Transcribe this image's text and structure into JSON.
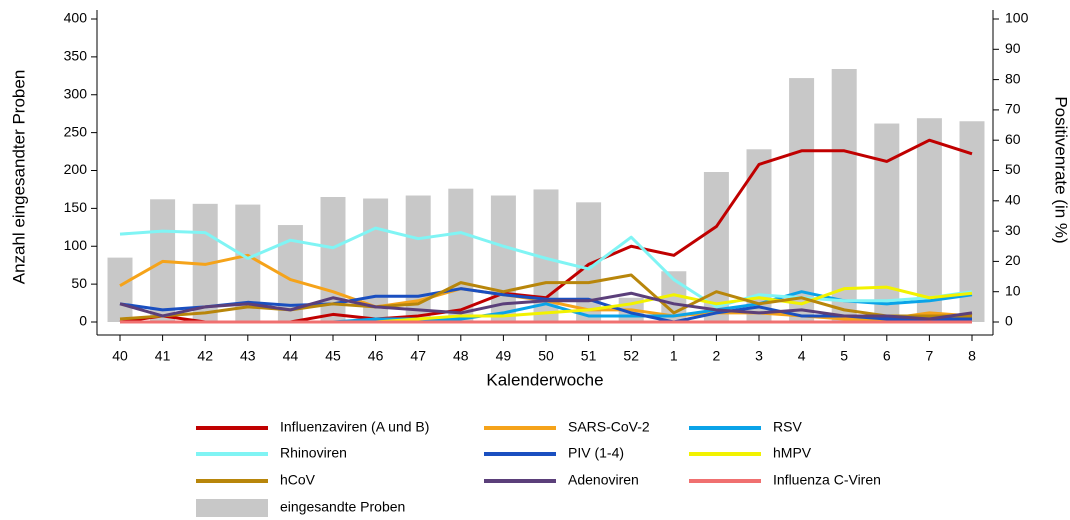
{
  "chart_data": {
    "type": "combo",
    "ylabel": "Anzahl eingesandter Proben",
    "y2label": "Positivenrate (in %)",
    "xlabel": "Kalenderwoche",
    "categories": [
      "40",
      "41",
      "42",
      "43",
      "44",
      "45",
      "46",
      "47",
      "48",
      "49",
      "50",
      "51",
      "52",
      "1",
      "2",
      "3",
      "4",
      "5",
      "6",
      "7",
      "8"
    ],
    "ylim": [
      0,
      400
    ],
    "yticks": [
      0,
      50,
      100,
      150,
      200,
      250,
      300,
      350,
      400
    ],
    "y2lim": [
      0,
      100
    ],
    "y2ticks": [
      0,
      10,
      20,
      30,
      40,
      50,
      60,
      70,
      80,
      90,
      100
    ],
    "grid": false,
    "legend": "bottom",
    "series": [
      {
        "name": "Influenzaviren (A und B)",
        "type": "line",
        "axis": "y2",
        "color": "#c00000",
        "values": [
          0,
          2,
          0,
          0,
          0,
          2.5,
          1,
          2,
          4,
          9.5,
          8,
          19,
          25,
          22,
          31.5,
          52,
          56.5,
          56.5,
          53,
          60,
          55.5
        ]
      },
      {
        "name": "SARS-CoV-2",
        "type": "line",
        "axis": "y2",
        "color": "#f5a31a",
        "values": [
          12,
          20,
          19,
          22,
          14,
          10,
          5,
          7,
          11,
          9,
          7,
          4,
          4,
          2,
          3,
          3,
          2,
          1,
          1,
          3,
          2
        ]
      },
      {
        "name": "RSV",
        "type": "line",
        "axis": "y2",
        "color": "#0aa3e8",
        "values": [
          0,
          0,
          0,
          0,
          0,
          0,
          1,
          1,
          1,
          3,
          6,
          2,
          2,
          2,
          4,
          6,
          10,
          7,
          6,
          7,
          9
        ]
      },
      {
        "name": "Rhinoviren",
        "type": "line",
        "axis": "y2",
        "color": "#80f4f4",
        "values": [
          29,
          30,
          29.5,
          21,
          27,
          24.5,
          31,
          27.5,
          29.5,
          25,
          21,
          17.5,
          28,
          14,
          5,
          9,
          8,
          7,
          7,
          8,
          10
        ]
      },
      {
        "name": "PIV (1-4)",
        "type": "line",
        "axis": "y2",
        "color": "#1a4fc0",
        "values": [
          6,
          4,
          5,
          6.5,
          5.5,
          6,
          8.5,
          8.5,
          11,
          9,
          7.5,
          7.5,
          3,
          0,
          3,
          5,
          2,
          2,
          1,
          1,
          1
        ]
      },
      {
        "name": "hMPV",
        "type": "line",
        "axis": "y2",
        "color": "#f2f200",
        "values": [
          0,
          0,
          0,
          0,
          0,
          0,
          0,
          1,
          2,
          2,
          3,
          4,
          6,
          9,
          6,
          8,
          6,
          11,
          11.5,
          8,
          9.5
        ]
      },
      {
        "name": "hCoV",
        "type": "line",
        "axis": "y2",
        "color": "#b8860b",
        "values": [
          1,
          2,
          3,
          5,
          4,
          6,
          5,
          6,
          13,
          10,
          13,
          13,
          15.5,
          3,
          10,
          6,
          8,
          4,
          2,
          2,
          2
        ]
      },
      {
        "name": "Adenoviren",
        "type": "line",
        "axis": "y2",
        "color": "#5b3f7a",
        "values": [
          6,
          2,
          5,
          6,
          4,
          8,
          5,
          4,
          3,
          6,
          7,
          7,
          9.5,
          6,
          4,
          3,
          4,
          2,
          2,
          1,
          3
        ]
      },
      {
        "name": "Influenza C-Viren",
        "type": "line",
        "axis": "y2",
        "color": "#f07070",
        "values": [
          0,
          0,
          0,
          0,
          0,
          0,
          0,
          0,
          0,
          0,
          0,
          0,
          0,
          0,
          0,
          0,
          0,
          0,
          0,
          0,
          0
        ]
      },
      {
        "name": "eingesandte Proben",
        "type": "bar",
        "axis": "y",
        "color": "#c8c8c8",
        "values": [
          85,
          162,
          156,
          155,
          128,
          165,
          163,
          167,
          176,
          167,
          175,
          158,
          32,
          67,
          198,
          228,
          322,
          334,
          262,
          269,
          265
        ]
      }
    ]
  }
}
